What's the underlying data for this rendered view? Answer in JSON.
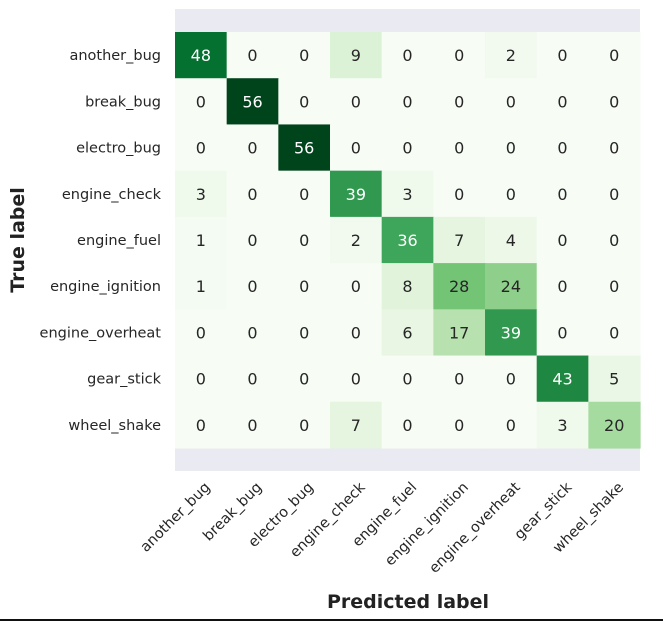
{
  "chart_data": {
    "type": "heatmap",
    "title": "",
    "xlabel": "Predicted label",
    "ylabel": "True label",
    "row_labels": [
      "another_bug",
      "break_bug",
      "electro_bug",
      "engine_check",
      "engine_fuel",
      "engine_ignition",
      "engine_overheat",
      "gear_stick",
      "wheel_shake"
    ],
    "col_labels": [
      "another_bug",
      "break_bug",
      "electro_bug",
      "engine_check",
      "engine_fuel",
      "engine_ignition",
      "engine_overheat",
      "gear_stick",
      "wheel_shake"
    ],
    "values": [
      [
        48,
        0,
        0,
        9,
        0,
        0,
        2,
        0,
        0
      ],
      [
        0,
        56,
        0,
        0,
        0,
        0,
        0,
        0,
        0
      ],
      [
        0,
        0,
        56,
        0,
        0,
        0,
        0,
        0,
        0
      ],
      [
        3,
        0,
        0,
        39,
        3,
        0,
        0,
        0,
        0
      ],
      [
        1,
        0,
        0,
        2,
        36,
        7,
        4,
        0,
        0
      ],
      [
        1,
        0,
        0,
        0,
        8,
        28,
        24,
        0,
        0
      ],
      [
        0,
        0,
        0,
        0,
        6,
        17,
        39,
        0,
        0
      ],
      [
        0,
        0,
        0,
        0,
        0,
        0,
        0,
        43,
        5
      ],
      [
        0,
        0,
        0,
        7,
        0,
        0,
        0,
        3,
        20
      ]
    ],
    "vmin": 0,
    "vmax": 56,
    "colormap": "Greens",
    "background_color": "#eaeaf2",
    "colorbar": false
  }
}
